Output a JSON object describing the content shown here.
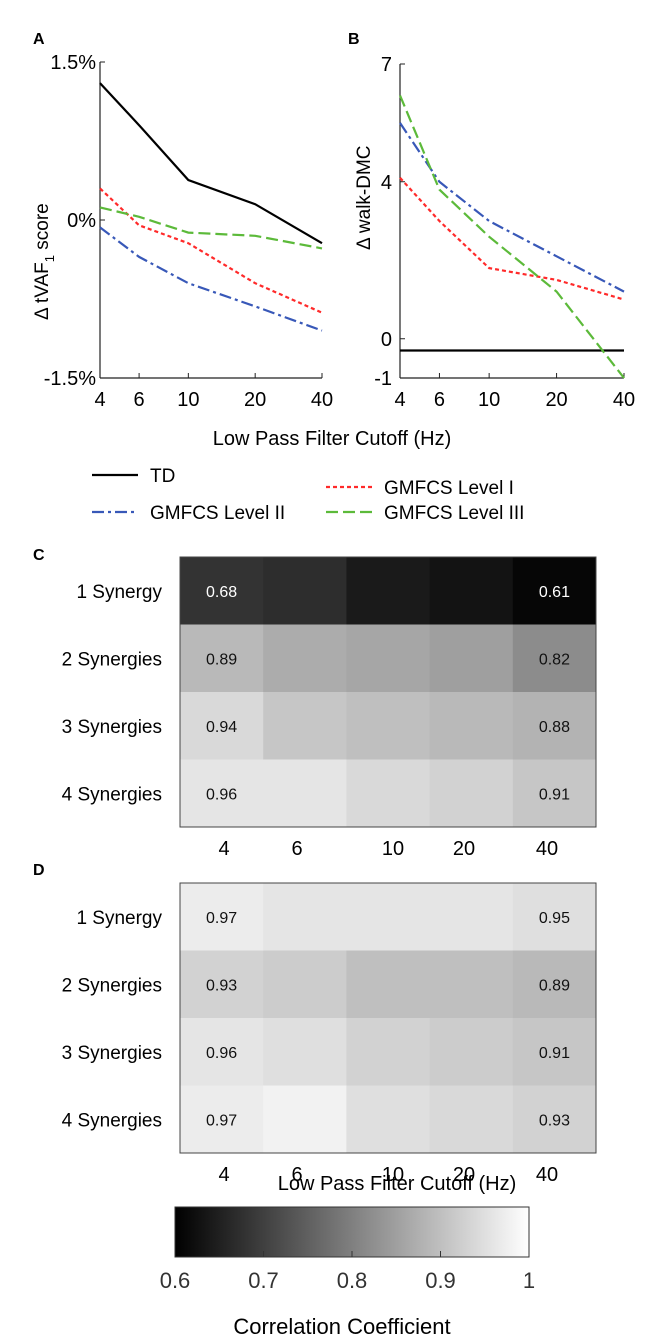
{
  "colors": {
    "td": "#000000",
    "gmfcs_1": "#ff2a2a",
    "gmfcs_2": "#3858b8",
    "gmfcs_3": "#5cba3a"
  },
  "legend": {
    "td": "TD",
    "gmfcs_1": "GMFCS Level I",
    "gmfcs_2": "GMFCS Level II",
    "gmfcs_3": "GMFCS Level III"
  },
  "chart_data": [
    {
      "panel": "A",
      "type": "line",
      "ylabel_main": "Δ tVAF",
      "ylabel_sub": "1",
      "ylabel_tail": " score",
      "xlabel": "Low Pass Filter Cutoff (Hz)",
      "x": [
        4,
        6,
        10,
        20,
        40
      ],
      "xtick_labels": [
        "4",
        "6",
        "10",
        "20",
        "40"
      ],
      "ytick_labels": [
        "1.5%",
        "0%",
        "-1.5%"
      ],
      "ytick_values": [
        1.5,
        0,
        -1.5
      ],
      "ylim": [
        -1.5,
        1.5
      ],
      "series": [
        {
          "name": "TD",
          "key": "td",
          "values": [
            1.3,
            0.9,
            0.38,
            0.15,
            -0.22
          ]
        },
        {
          "name": "GMFCS Level I",
          "key": "gmfcs_1",
          "values": [
            0.3,
            -0.05,
            -0.22,
            -0.6,
            -0.88
          ]
        },
        {
          "name": "GMFCS Level II",
          "key": "gmfcs_2",
          "values": [
            -0.07,
            -0.35,
            -0.6,
            -0.82,
            -1.05
          ]
        },
        {
          "name": "GMFCS Level III",
          "key": "gmfcs_3",
          "values": [
            0.12,
            0.03,
            -0.12,
            -0.15,
            -0.27
          ]
        }
      ]
    },
    {
      "panel": "B",
      "type": "line",
      "ylabel": "Δ walk-DMC",
      "x": [
        4,
        6,
        10,
        20,
        40
      ],
      "xtick_labels": [
        "4",
        "6",
        "10",
        "20",
        "40"
      ],
      "ytick_labels": [
        "7",
        "4",
        "0",
        "-1"
      ],
      "ytick_values": [
        7,
        4,
        0,
        -1
      ],
      "ylim": [
        -1,
        7
      ],
      "series": [
        {
          "name": "TD",
          "key": "td",
          "values": [
            -0.3,
            -0.3,
            -0.3,
            -0.3,
            -0.3
          ]
        },
        {
          "name": "GMFCS Level I",
          "key": "gmfcs_1",
          "values": [
            4.1,
            3.0,
            1.8,
            1.5,
            1.0
          ]
        },
        {
          "name": "GMFCS Level II",
          "key": "gmfcs_2",
          "values": [
            5.5,
            4.0,
            3.0,
            2.1,
            1.2
          ]
        },
        {
          "name": "GMFCS Level III",
          "key": "gmfcs_3",
          "values": [
            6.2,
            3.8,
            2.6,
            1.2,
            -1.0
          ]
        }
      ]
    },
    {
      "panel": "C",
      "type": "heatmap",
      "rows": [
        "1 Synergy",
        "2 Synergies",
        "3 Synergies",
        "4 Synergies"
      ],
      "columns": [
        "4",
        "6",
        "10",
        "20",
        "40"
      ],
      "values": [
        [
          0.68,
          0.67,
          0.64,
          0.63,
          0.61
        ],
        [
          0.89,
          0.87,
          0.86,
          0.85,
          0.82
        ],
        [
          0.94,
          0.91,
          0.9,
          0.89,
          0.88
        ],
        [
          0.96,
          0.96,
          0.94,
          0.93,
          0.91
        ]
      ],
      "labeled_columns": [
        0,
        4
      ]
    },
    {
      "panel": "D",
      "type": "heatmap",
      "xlabel": "Low Pass Filter Cutoff (Hz)",
      "rows": [
        "1 Synergy",
        "2 Synergies",
        "3 Synergies",
        "4 Synergies"
      ],
      "columns": [
        "4",
        "6",
        "10",
        "20",
        "40"
      ],
      "values": [
        [
          0.97,
          0.96,
          0.96,
          0.96,
          0.95
        ],
        [
          0.93,
          0.92,
          0.9,
          0.9,
          0.89
        ],
        [
          0.96,
          0.95,
          0.93,
          0.92,
          0.91
        ],
        [
          0.97,
          0.98,
          0.95,
          0.94,
          0.93
        ]
      ],
      "labeled_columns": [
        0,
        4
      ]
    },
    {
      "panel": "colorbar",
      "type": "heatmap",
      "label": "Correlation Coefficient",
      "range": [
        0.6,
        1
      ],
      "tick_labels": [
        "0.6",
        "0.7",
        "0.8",
        "0.9",
        "1"
      ],
      "tick_values": [
        0.6,
        0.7,
        0.8,
        0.9,
        1.0
      ]
    }
  ]
}
